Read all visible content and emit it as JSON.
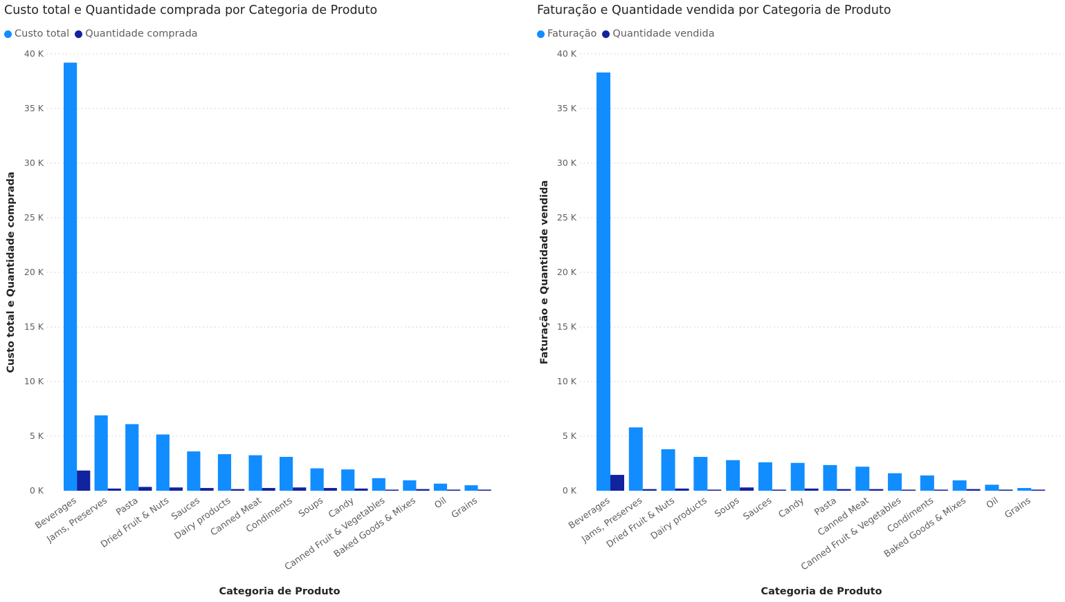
{
  "colors": {
    "primary": "#118DFF",
    "secondary": "#12239E",
    "grid": "#c8c6c4"
  },
  "chart_data": [
    {
      "type": "bar",
      "title": "Custo total e Quantidade comprada por Categoria de Produto",
      "xlabel": "Categoria de Produto",
      "ylabel": "Custo total e Quantidade comprada",
      "ylim": [
        0,
        40000
      ],
      "yticks": [
        0,
        5000,
        10000,
        15000,
        20000,
        25000,
        30000,
        35000,
        40000
      ],
      "ytick_labels": [
        "0 K",
        "5 K",
        "10 K",
        "15 K",
        "20 K",
        "25 K",
        "30 K",
        "35 K",
        "40 K"
      ],
      "grid": true,
      "legend_position": "top-left",
      "categories": [
        "Beverages",
        "Jams, Preserves",
        "Pasta",
        "Dried Fruit & Nuts",
        "Sauces",
        "Dairy products",
        "Canned Meat",
        "Condiments",
        "Soups",
        "Candy",
        "Canned Fruit & Vegetables",
        "Baked Goods & Mixes",
        "Oil",
        "Grains"
      ],
      "series": [
        {
          "name": "Custo total",
          "values": [
            39200,
            6900,
            6100,
            5150,
            3600,
            3350,
            3250,
            3100,
            2050,
            1950,
            1150,
            950,
            650,
            500
          ]
        },
        {
          "name": "Quantidade comprada",
          "values": [
            1850,
            200,
            350,
            300,
            250,
            150,
            250,
            300,
            250,
            200,
            100,
            150,
            100,
            100
          ]
        }
      ]
    },
    {
      "type": "bar",
      "title": "Faturação e Quantidade vendida por Categoria de Produto",
      "xlabel": "Categoria de Produto",
      "ylabel": "Faturação e Quantidade vendida",
      "ylim": [
        0,
        40000
      ],
      "yticks": [
        0,
        5000,
        10000,
        15000,
        20000,
        25000,
        30000,
        35000,
        40000
      ],
      "ytick_labels": [
        "0 K",
        "5 K",
        "10 K",
        "15 K",
        "20 K",
        "25 K",
        "30 K",
        "35 K",
        "40 K"
      ],
      "grid": true,
      "legend_position": "top-left",
      "categories": [
        "Beverages",
        "Jams, Preserves",
        "Dried Fruit & Nuts",
        "Dairy products",
        "Soups",
        "Sauces",
        "Candy",
        "Pasta",
        "Canned Meat",
        "Canned Fruit & Vegetables",
        "Condiments",
        "Baked Goods & Mixes",
        "Oil",
        "Grains"
      ],
      "series": [
        {
          "name": "Faturação",
          "values": [
            38300,
            5800,
            3800,
            3100,
            2800,
            2600,
            2550,
            2350,
            2200,
            1600,
            1400,
            950,
            550,
            250
          ]
        },
        {
          "name": "Quantidade vendida",
          "values": [
            1450,
            150,
            200,
            100,
            300,
            100,
            200,
            150,
            150,
            100,
            100,
            150,
            100,
            100
          ]
        }
      ]
    }
  ]
}
